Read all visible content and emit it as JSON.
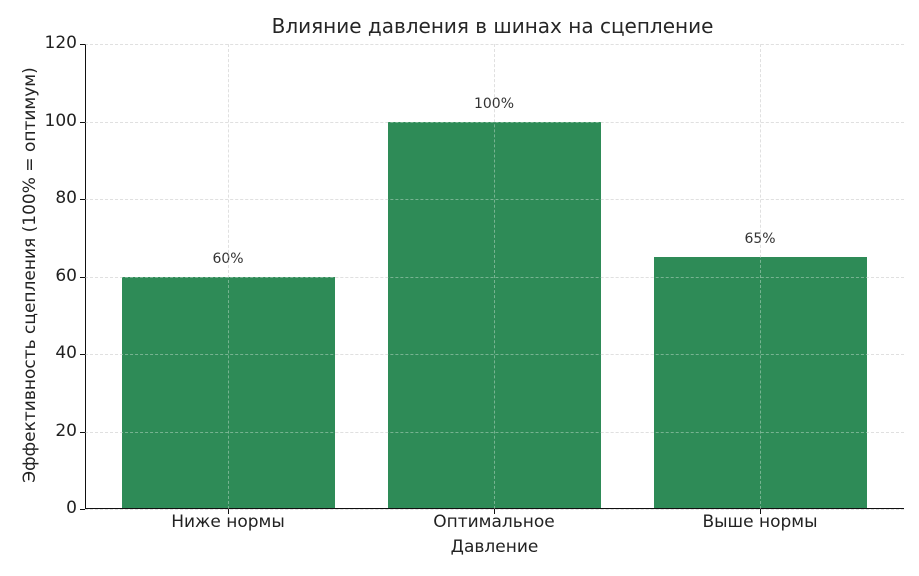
{
  "chart_data": {
    "type": "bar",
    "title": "Влияние давления в шинах на сцепление",
    "xlabel": "Давление",
    "ylabel": "Эффективность сцепления (100% = оптимум)",
    "categories": [
      "Ниже нормы",
      "Оптимальное",
      "Выше нормы"
    ],
    "values": [
      60,
      100,
      65
    ],
    "bar_labels": [
      "60%",
      "100%",
      "65%"
    ],
    "ylim": [
      0,
      120
    ],
    "yticks": [
      0,
      20,
      40,
      60,
      80,
      100,
      120
    ],
    "grid": true,
    "bar_color": "#2e8b57",
    "legend": null
  }
}
